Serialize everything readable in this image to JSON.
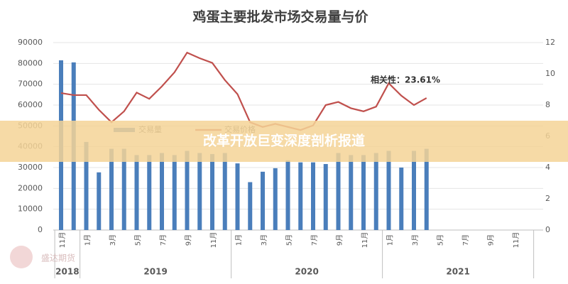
{
  "chart_data": {
    "type": "bar_line",
    "title": "鸡蛋主要批发市场交易量与价",
    "annotation": "相关性：23.61%",
    "banner": "改革开放巨变深度剖析报道",
    "watermark": "盛达期货",
    "categories": [
      "11月",
      null,
      "1月",
      null,
      "3月",
      null,
      "5月",
      null,
      "7月",
      null,
      "9月",
      null,
      "11月",
      null,
      "1月",
      null,
      "3月",
      null,
      "5月",
      null,
      "7月",
      null,
      "9月",
      null,
      "11月",
      null,
      "1月",
      null,
      "3月",
      null,
      "5月",
      null,
      "7月",
      null,
      "9月",
      null,
      "11月",
      null
    ],
    "year_labels": [
      "2018",
      "2019",
      "2020",
      "2021"
    ],
    "series": [
      {
        "name": "交易量",
        "color": "#4a7ebb",
        "axis": "y",
        "values": [
          81500,
          80500,
          42300,
          27700,
          39000,
          39000,
          36000,
          36000,
          37000,
          36000,
          38000,
          37000,
          36500,
          37000,
          32000,
          23000,
          28000,
          29700,
          33500,
          32500,
          32500,
          31700,
          37000,
          36000,
          36000,
          37000,
          38000,
          30000,
          38000,
          39000,
          null,
          null,
          null,
          null,
          null,
          null,
          null,
          null
        ]
      },
      {
        "name": "交易价格",
        "color": "#c0504d",
        "axis": "y2",
        "values": [
          8.77,
          8.64,
          8.64,
          7.7,
          6.9,
          7.6,
          8.8,
          8.4,
          9.2,
          10.1,
          11.36,
          11.0,
          10.7,
          9.6,
          8.7,
          6.9,
          6.6,
          6.8,
          6.6,
          6.4,
          6.7,
          8.0,
          8.2,
          7.8,
          7.6,
          7.9,
          9.4,
          8.6,
          8.0,
          8.45,
          null,
          null,
          null,
          null,
          null,
          null,
          null,
          null
        ]
      }
    ],
    "ylim": [
      0,
      90000
    ],
    "yticks": [
      0,
      10000,
      20000,
      30000,
      40000,
      50000,
      60000,
      70000,
      80000,
      90000
    ],
    "y2lim": [
      0,
      12
    ],
    "y2ticks": [
      0,
      2,
      4,
      6,
      8,
      10,
      12
    ],
    "grid": true
  }
}
